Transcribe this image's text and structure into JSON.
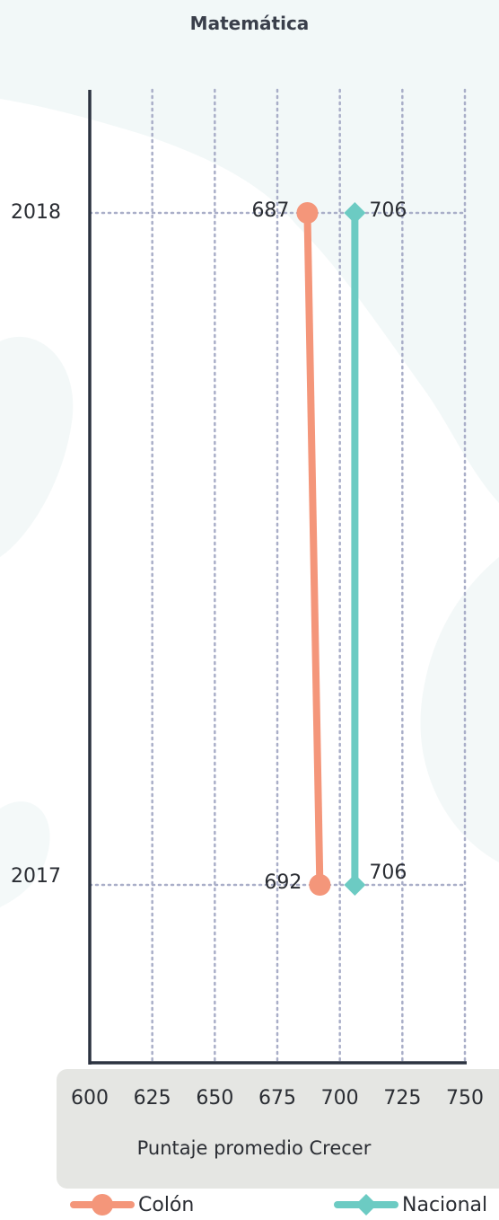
{
  "chart_data": {
    "type": "line",
    "title": "Matemática",
    "xlabel": "Puntaje promedio Crecer",
    "xlim": [
      600,
      750
    ],
    "x_ticks": [
      "600",
      "625",
      "650",
      "675",
      "700",
      "725",
      "750"
    ],
    "y_categories": [
      "2018",
      "2017"
    ],
    "grid": true,
    "legend_position": "bottom",
    "series": [
      {
        "name": "Colón",
        "color": "#f4967a",
        "marker": "circle",
        "points": [
          {
            "year": "2018",
            "value": 687
          },
          {
            "year": "2017",
            "value": 692
          }
        ],
        "labels": [
          "687",
          "692"
        ]
      },
      {
        "name": "Nacional",
        "color": "#6ccbc3",
        "marker": "diamond",
        "points": [
          {
            "year": "2018",
            "value": 706
          },
          {
            "year": "2017",
            "value": 706
          }
        ],
        "labels": [
          "706",
          "706"
        ]
      }
    ]
  }
}
